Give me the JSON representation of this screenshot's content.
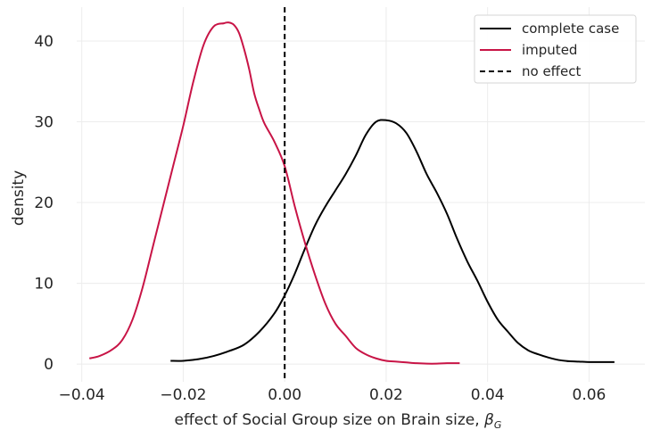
{
  "chart_data": {
    "type": "line",
    "title": "",
    "xlabel": "effect of Social Group size on Brain size, ",
    "xlabel_symbol": "β",
    "xlabel_subscript": "G",
    "ylabel": "density",
    "xlim": [
      -0.041,
      0.071
    ],
    "ylim": [
      -2.2,
      44.2
    ],
    "grid": true,
    "legend_position": "top-right",
    "x_ticks": [
      -0.04,
      -0.02,
      0.0,
      0.02,
      0.04,
      0.06
    ],
    "x_tick_labels": [
      "−0.04",
      "−0.02",
      "0.00",
      "0.02",
      "0.04",
      "0.06"
    ],
    "y_ticks": [
      0,
      10,
      20,
      30,
      40
    ],
    "y_tick_labels": [
      "0",
      "10",
      "20",
      "30",
      "40"
    ],
    "series": [
      {
        "name": "complete case",
        "color": "#000000",
        "style": "solid",
        "x": [
          -0.0225,
          -0.02,
          -0.017,
          -0.014,
          -0.011,
          -0.008,
          -0.005,
          -0.002,
          0.0,
          0.002,
          0.004,
          0.006,
          0.008,
          0.01,
          0.012,
          0.014,
          0.016,
          0.018,
          0.02,
          0.022,
          0.024,
          0.026,
          0.028,
          0.03,
          0.032,
          0.034,
          0.036,
          0.038,
          0.04,
          0.042,
          0.044,
          0.046,
          0.048,
          0.05,
          0.052,
          0.054,
          0.056,
          0.058,
          0.06,
          0.062,
          0.065
        ],
        "y": [
          0.4,
          0.4,
          0.6,
          1.0,
          1.6,
          2.4,
          4.0,
          6.3,
          8.5,
          11.2,
          14.3,
          17.2,
          19.5,
          21.5,
          23.5,
          25.8,
          28.4,
          30.0,
          30.2,
          29.8,
          28.6,
          26.3,
          23.5,
          21.2,
          18.6,
          15.5,
          12.7,
          10.3,
          7.7,
          5.5,
          4.0,
          2.6,
          1.7,
          1.2,
          0.8,
          0.5,
          0.35,
          0.3,
          0.25,
          0.25,
          0.25
        ]
      },
      {
        "name": "imputed",
        "color": "#c81446",
        "style": "solid",
        "x": [
          -0.0385,
          -0.0365,
          -0.034,
          -0.032,
          -0.03,
          -0.028,
          -0.026,
          -0.024,
          -0.022,
          -0.02,
          -0.018,
          -0.016,
          -0.014,
          -0.012,
          -0.011,
          -0.01,
          -0.009,
          -0.008,
          -0.007,
          -0.006,
          -0.005,
          -0.004,
          -0.002,
          0.0,
          0.002,
          0.004,
          0.006,
          0.008,
          0.01,
          0.012,
          0.014,
          0.016,
          0.018,
          0.02,
          0.022,
          0.024,
          0.026,
          0.028,
          0.03,
          0.032,
          0.0345
        ],
        "y": [
          0.7,
          1.0,
          1.8,
          3.0,
          5.5,
          9.5,
          14.5,
          19.5,
          24.5,
          29.5,
          35.0,
          39.5,
          41.8,
          42.2,
          42.3,
          42.0,
          41.0,
          39.0,
          36.5,
          33.5,
          31.5,
          29.8,
          27.5,
          24.5,
          19.5,
          15.0,
          11.0,
          7.5,
          5.0,
          3.5,
          2.0,
          1.2,
          0.7,
          0.4,
          0.3,
          0.2,
          0.1,
          0.05,
          0.05,
          0.1,
          0.1
        ]
      }
    ],
    "vlines": [
      {
        "name": "no effect",
        "x": 0.0,
        "color": "#000000",
        "style": "dashed"
      }
    ],
    "legend": [
      {
        "label": "complete case",
        "color": "#000000",
        "style": "solid"
      },
      {
        "label": "imputed",
        "color": "#c81446",
        "style": "solid"
      },
      {
        "label": "no effect",
        "color": "#000000",
        "style": "dashed"
      }
    ]
  }
}
